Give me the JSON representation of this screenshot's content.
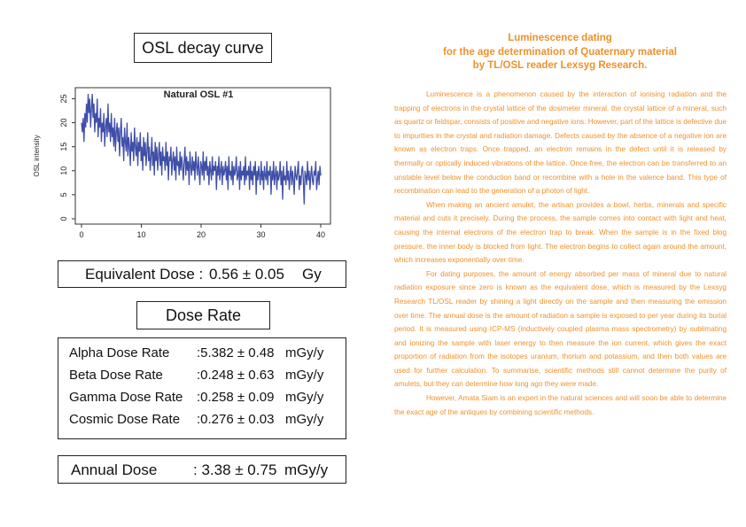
{
  "osl_title": "OSL decay curve",
  "chart_data": {
    "type": "line",
    "title": "Natural OSL #1",
    "xlabel": "",
    "ylabel": "OSL intensity",
    "xlim": [
      0,
      40
    ],
    "ylim": [
      0,
      26
    ],
    "xticks": [
      "0",
      "10",
      "20",
      "30",
      "40"
    ],
    "yticks": [
      "0",
      "5",
      "10",
      "15",
      "20",
      "25"
    ],
    "color": "#3f4fa8",
    "series": [
      {
        "values": [
          20,
          18,
          21,
          16,
          22,
          19,
          24,
          20,
          26,
          22,
          25,
          19,
          23,
          26,
          21,
          24,
          18,
          22,
          20,
          25,
          17,
          21,
          19,
          23,
          16,
          20,
          18,
          22,
          15,
          19,
          21,
          17,
          24,
          18,
          20,
          16,
          22,
          17,
          19,
          15,
          21,
          14,
          18,
          20,
          16,
          19,
          13,
          18,
          21,
          15,
          17,
          12,
          19,
          16,
          14,
          20,
          13,
          17,
          15,
          11,
          18,
          14,
          16,
          12,
          19,
          15,
          13,
          17,
          11,
          16,
          14,
          18,
          12,
          15,
          10,
          17,
          13,
          16,
          11,
          14,
          18,
          12,
          15,
          10,
          13,
          17,
          11,
          14,
          9,
          16,
          12,
          15,
          10,
          13,
          16,
          11,
          14,
          9,
          15,
          12,
          13,
          10,
          16,
          11,
          14,
          8,
          13,
          12,
          15,
          9,
          12,
          14,
          10,
          13,
          8,
          15,
          11,
          12,
          9,
          14,
          10,
          13,
          11,
          8,
          12,
          15,
          9,
          13,
          10,
          12,
          7,
          14,
          11,
          9,
          13,
          10,
          12,
          8,
          14,
          11,
          9,
          13,
          10,
          7,
          12,
          11,
          9,
          14,
          8,
          12,
          10,
          13,
          9,
          11,
          7,
          12,
          10,
          8,
          13,
          9,
          11,
          10,
          12,
          6,
          11,
          9,
          13,
          8,
          10,
          12,
          7,
          11,
          9,
          10,
          12,
          8,
          11,
          6,
          13,
          9,
          10,
          8,
          12,
          7,
          11,
          9,
          10,
          13,
          8,
          9,
          11,
          6,
          12,
          8,
          10,
          9,
          11,
          7,
          13,
          8,
          10,
          9,
          11,
          6,
          12,
          8,
          10,
          7,
          11,
          9,
          12,
          5,
          10,
          8,
          11,
          9,
          7,
          12,
          8,
          10,
          6,
          11,
          9,
          8,
          12,
          7,
          10,
          9,
          11,
          5,
          10,
          8,
          12,
          7,
          9,
          11,
          6,
          10,
          8,
          9,
          12,
          7,
          10,
          4,
          11,
          8,
          9,
          7,
          12,
          8,
          10,
          6,
          9,
          11,
          7,
          10,
          8,
          5,
          11,
          9,
          8,
          10,
          12,
          6,
          9,
          7,
          10,
          11,
          8,
          3,
          10,
          9,
          7,
          12,
          8,
          10,
          6,
          9,
          11,
          8,
          7,
          10,
          9,
          12,
          6,
          8,
          10,
          7,
          11,
          9
        ]
      }
    ]
  },
  "equivalent_dose": {
    "label": "Equivalent Dose :",
    "value": "0.56 ± 0.05",
    "unit": "Gy"
  },
  "dose_rate_title": "Dose Rate",
  "dose_rates": [
    {
      "label": "Alpha Dose Rate",
      "value": ":5.382 ± 0.48",
      "unit": "mGy/y"
    },
    {
      "label": "Beta Dose Rate",
      "value": ":0.248 ± 0.63",
      "unit": "mGy/y"
    },
    {
      "label": "Gamma Dose Rate",
      "value": ":0.258 ± 0.09",
      "unit": "mGy/y"
    },
    {
      "label": "Cosmic Dose Rate",
      "value": ":0.276 ± 0.03",
      "unit": "mGy/y"
    }
  ],
  "annual_dose": {
    "label": "Annual Dose",
    "value": ": 3.38 ± 0.75",
    "unit": "mGy/y"
  },
  "heading": {
    "line1": "Luminescence dating",
    "line2": "for the age determination of Quaternary material",
    "line3": "by TL/OSL reader Lexsyg Research."
  },
  "paragraphs": [
    "Luminescence is a phenomenon caused by the interaction of ionising radiation and the trapping of electrons in the crystal lattice of the dosimeter mineral. the crystal lattice of a mineral, such as quartz or feldspar, consists of positive and negative ions. However, part of the lattice is defective due to impurities in the crystal and radiation damage. Defects caused by the absence of a negative ion are known as electron traps. Once trapped, an electron remains in the defect until it is released by thermally or optically induced vibrations of the lattice. Once free, the electron can be transferred to an unstable level below the conduction band or recombine with a hole in the valence band. This type of recombination can lead to the generation of a photon of light.",
    "When making an ancient amulet, the artisan provides a bowl, herbs, minerals and specific material and cuts it precisely. During the process, the sample comes into contact with light and heat, causing the internal electrons of the electron trap to break. When the sample is in the fixed blog pressure, the inner body is blocked from light. The electron begins to collect again around the amount, which increases exponentially over time.",
    "For dating purposes, the amount of energy absorbed per mass of mineral due to natural radiation exposure since zero is known as the equivalent dose, which is measured by the Lexsyg Research TL/OSL reader by shining a light directly on the sample and then measuring the emission over time. The annual dose is the amount of radiation a sample is exposed to per year during its burial period. It is measured using ICP-MS (inductively coupled plasma mass spectrometry) by sublimating and ionizing the sample with laser energy to then measure the ion current, which gives the exact proportion of radiation from the isotopes uranium, thorium and potassium, and then both values are used for further calculation. To summarise, scientific methods still cannot determine the purity of amulets, but they can determine how long ago they were made.",
    "However, Amata Siam is an expert in the natural sciences and will soon be able to determine the exact age of the antiques by combining scientific methods."
  ]
}
